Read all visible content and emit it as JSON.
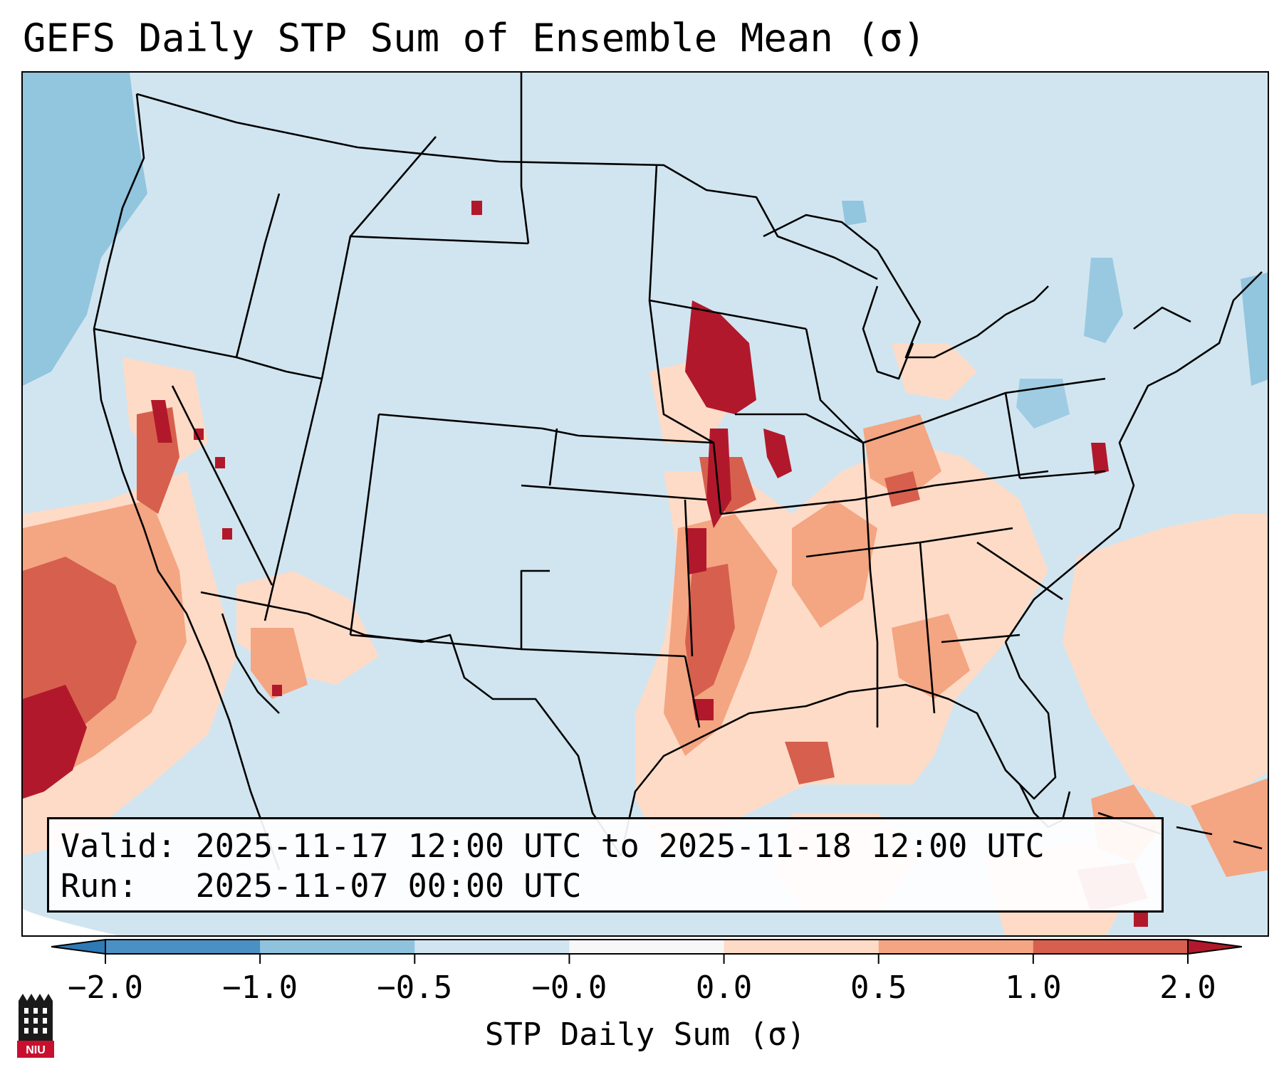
{
  "title": "GEFS Daily STP Sum of Ensemble Mean (σ)",
  "info": {
    "valid_label": "Valid:",
    "valid_value": "2025-11-17 12:00 UTC to 2025-11-18 12:00 UTC",
    "run_label": "Run:",
    "run_value": "2025-11-07 00:00 UTC"
  },
  "colorbar": {
    "label": "STP Daily Sum (σ)",
    "ticks": [
      "−2.0",
      "−1.0",
      "−0.5",
      "−0.0",
      "0.0",
      "0.5",
      "1.0",
      "2.0"
    ],
    "colors": [
      "#2f79b5",
      "#4a90c4",
      "#8fc3dd",
      "#d1e5f0",
      "#f7f7f7",
      "#fddbc7",
      "#f4a582",
      "#d6604d",
      "#b2182b"
    ]
  },
  "map_colors": {
    "background": "#d1e5f0",
    "negative_strong": "#92c5de",
    "positive_light": "#fddbc7",
    "positive_medium": "#f4a582",
    "positive_strong": "#d6604d",
    "positive_max": "#b2182b",
    "borders": "#000000"
  },
  "logo_text": "NIU"
}
